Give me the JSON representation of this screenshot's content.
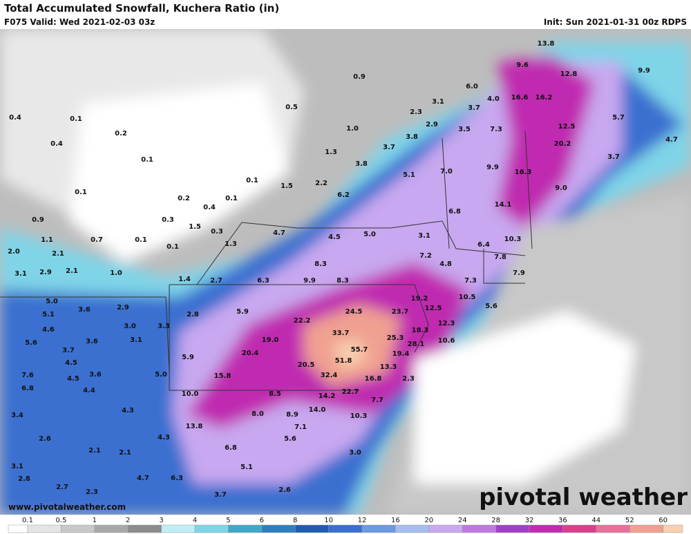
{
  "header": {
    "title": "Total Accumulated Snowfall, Kuchera Ratio (in)",
    "valid": "F075 Valid: Wed 2021-02-03 03z",
    "init": "Init: Sun 2021-01-31 00z RDPS"
  },
  "footer": {
    "url": "www.pivotalweather.com",
    "brand": "pivotal weather"
  },
  "legend": {
    "ticks": [
      "0.1",
      "0.5",
      "1",
      "2",
      "3",
      "4",
      "5",
      "6",
      "8",
      "10",
      "12",
      "16",
      "20",
      "24",
      "28",
      "32",
      "36",
      "44",
      "52",
      "60"
    ],
    "colors": [
      "#ffffff",
      "#e4e4e4",
      "#c8c8c8",
      "#a8a8a8",
      "#8c8c8c",
      "#bfeef7",
      "#7fd4e8",
      "#3fa8c8",
      "#2f7fc0",
      "#1f5bb0",
      "#3a6fd0",
      "#6a9ae0",
      "#a6bdf0",
      "#c8a8f0",
      "#c078e0",
      "#a040c8",
      "#c02cb0",
      "#d8408c",
      "#e8709a",
      "#f0a090",
      "#f8d0b0"
    ]
  },
  "map": {
    "labels": [
      "0.9",
      "0.5",
      "6.0",
      "3.1",
      "3.7",
      "4.0",
      "2.3",
      "2.9",
      "1.0",
      "3.5",
      "7.3",
      "13.8",
      "9.6",
      "12.8",
      "9.9",
      "16.6",
      "16.2",
      "12.5",
      "5.7",
      "4.7",
      "20.2",
      "3.7",
      "3.8",
      "3.7",
      "1.3",
      "3.8",
      "5.1",
      "7.0",
      "9.9",
      "16.3",
      "9.0",
      "0.4",
      "0.1",
      "0.2",
      "0.4",
      "0.1",
      "0.1",
      "0.1",
      "1.5",
      "2.2",
      "6.2",
      "0.2",
      "0.1",
      "0.4",
      "0.9",
      "0.3",
      "1.5",
      "0.3",
      "6.8",
      "14.1",
      "4.7",
      "4.5",
      "5.0",
      "3.1",
      "10.3",
      "1.1",
      "0.7",
      "0.1",
      "0.1",
      "1.3",
      "6.4",
      "7.8",
      "2.0",
      "2.1",
      "8.3",
      "7.2",
      "4.8",
      "3.1",
      "2.9",
      "2.1",
      "1.0",
      "1.4",
      "2.7",
      "6.3",
      "9.9",
      "8.3",
      "7.9",
      "7.3",
      "10.5",
      "19.2",
      "12.5",
      "5.6",
      "5.0",
      "3.6",
      "2.9",
      "5.1",
      "2.8",
      "5.9",
      "24.5",
      "23.7",
      "3.0",
      "3.3",
      "4.6",
      "22.2",
      "33.7",
      "25.3",
      "18.3",
      "12.3",
      "5.6",
      "3.6",
      "3.1",
      "3.7",
      "19.0",
      "28.1",
      "10.6",
      "4.5",
      "20.4",
      "55.7",
      "19.4",
      "5.9",
      "51.8",
      "13.3",
      "7.6",
      "20.5",
      "32.4",
      "4.5",
      "3.6",
      "5.0",
      "15.8",
      "6.8",
      "4.4",
      "16.8",
      "2.3",
      "10.0",
      "8.5",
      "14.2",
      "22.7",
      "7.7",
      "4.3",
      "8.0",
      "8.9",
      "14.0",
      "10.3",
      "3.4",
      "13.8",
      "7.1",
      "5.6",
      "2.6",
      "4.3",
      "6.8",
      "2.1",
      "2.1",
      "3.0",
      "3.1",
      "5.1",
      "4.7",
      "6.3",
      "2.8",
      "2.7",
      "2.6",
      "2.3",
      "3.7"
    ]
  }
}
